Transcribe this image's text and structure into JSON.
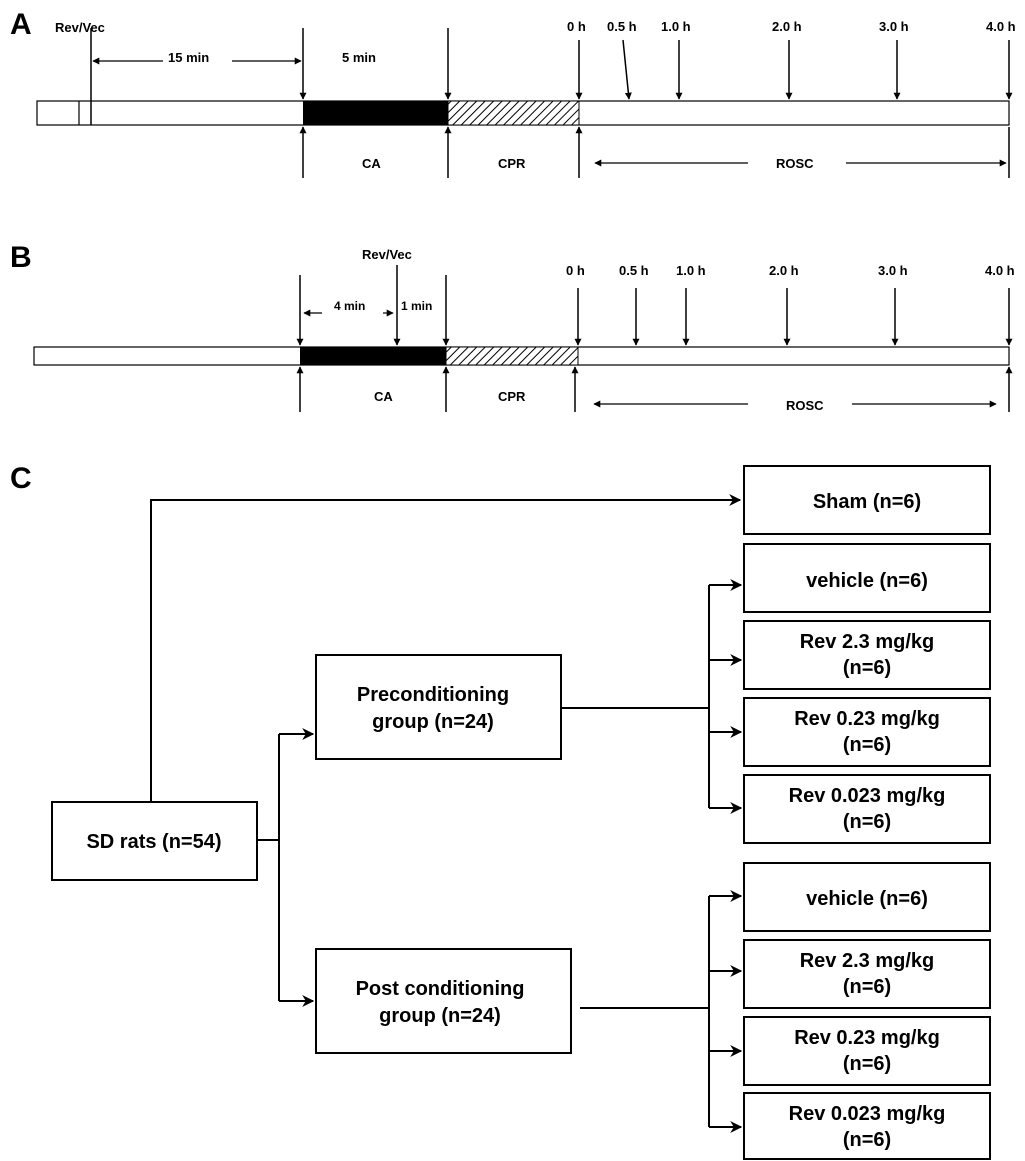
{
  "panel_a": {
    "label": "A",
    "rev_vec": "Rev/Vec",
    "interval_15": "15 min",
    "interval_5": "5 min",
    "times": [
      "0 h",
      "0.5 h",
      "1.0 h",
      "2.0 h",
      "3.0 h",
      "4.0 h"
    ],
    "phases": {
      "ca": "CA",
      "cpr": "CPR",
      "rosc": "ROSC"
    }
  },
  "panel_b": {
    "label": "B",
    "rev_vec": "Rev/Vec",
    "interval_4": "4 min",
    "interval_1": "1 min",
    "times": [
      "0 h",
      "0.5 h",
      "1.0 h",
      "2.0 h",
      "3.0 h",
      "4.0 h"
    ],
    "phases": {
      "ca": "CA",
      "cpr": "CPR",
      "rosc": "ROSC"
    }
  },
  "panel_c": {
    "label": "C",
    "root": "SD rats (n=54)",
    "sham": "Sham (n=6)",
    "pre_group": [
      "Preconditioning",
      "group (n=24)"
    ],
    "post_group": [
      "Post conditioning",
      "group (n=24)"
    ],
    "pre_arms": [
      [
        "vehicle (n=6)"
      ],
      [
        "Rev 2.3 mg/kg",
        "(n=6)"
      ],
      [
        "Rev 0.23 mg/kg",
        "(n=6)"
      ],
      [
        "Rev 0.023 mg/kg",
        "(n=6)"
      ]
    ],
    "post_arms": [
      [
        "vehicle (n=6)"
      ],
      [
        "Rev 2.3 mg/kg",
        "(n=6)"
      ],
      [
        "Rev 0.23 mg/kg",
        "(n=6)"
      ],
      [
        "Rev 0.023 mg/kg",
        "(n=6)"
      ]
    ]
  }
}
